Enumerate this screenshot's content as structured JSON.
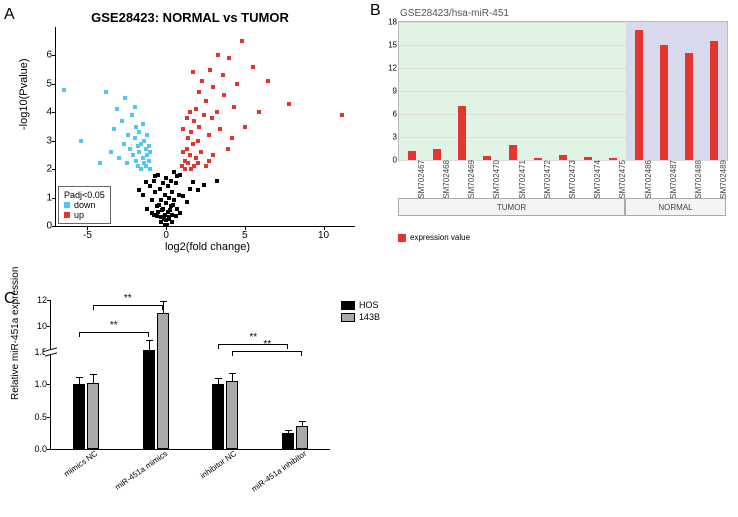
{
  "panelLabels": {
    "A": "A",
    "B": "B",
    "C": "C"
  },
  "volcano": {
    "title": "GSE28423: NORMAL vs TUMOR",
    "xlabel": "log2(fold change)",
    "ylabel": "-log10(Pvalue)",
    "xlim": [
      -7,
      12
    ],
    "ylim": [
      0,
      7
    ],
    "xticks": [
      -5,
      0,
      5,
      10
    ],
    "yticks": [
      0,
      1,
      2,
      3,
      4,
      5,
      6
    ],
    "colors": {
      "down": "#54c7f0",
      "up": "#e5352f",
      "ns": "#000000",
      "background": "#ffffff"
    },
    "pointSize": 4,
    "legend": {
      "title": "Padj<0.05",
      "items": [
        {
          "label": "down",
          "color": "#54c7f0"
        },
        {
          "label": "up",
          "color": "#e5352f"
        }
      ]
    },
    "points": [
      {
        "x": 11.2,
        "y": 3.9,
        "g": "up"
      },
      {
        "x": 7.8,
        "y": 4.3,
        "g": "up"
      },
      {
        "x": 6.5,
        "y": 5.1,
        "g": "up"
      },
      {
        "x": 5.9,
        "y": 4.0,
        "g": "up"
      },
      {
        "x": 5.5,
        "y": 5.6,
        "g": "up"
      },
      {
        "x": 5.0,
        "y": 3.5,
        "g": "up"
      },
      {
        "x": 4.8,
        "y": 6.5,
        "g": "up"
      },
      {
        "x": 4.5,
        "y": 5.0,
        "g": "up"
      },
      {
        "x": 4.3,
        "y": 4.2,
        "g": "up"
      },
      {
        "x": 4.2,
        "y": 3.1,
        "g": "up"
      },
      {
        "x": 4.0,
        "y": 5.9,
        "g": "up"
      },
      {
        "x": 3.9,
        "y": 2.7,
        "g": "up"
      },
      {
        "x": 3.7,
        "y": 4.6,
        "g": "up"
      },
      {
        "x": 3.6,
        "y": 5.3,
        "g": "up"
      },
      {
        "x": 3.4,
        "y": 3.4,
        "g": "up"
      },
      {
        "x": 3.3,
        "y": 6.0,
        "g": "up"
      },
      {
        "x": 3.2,
        "y": 4.0,
        "g": "up"
      },
      {
        "x": 3.0,
        "y": 2.5,
        "g": "up"
      },
      {
        "x": 3.0,
        "y": 4.9,
        "g": "up"
      },
      {
        "x": 2.9,
        "y": 3.8,
        "g": "up"
      },
      {
        "x": 2.8,
        "y": 5.5,
        "g": "up"
      },
      {
        "x": 2.7,
        "y": 2.3,
        "g": "up"
      },
      {
        "x": 2.7,
        "y": 3.2,
        "g": "up"
      },
      {
        "x": 2.5,
        "y": 4.4,
        "g": "up"
      },
      {
        "x": 2.5,
        "y": 2.1,
        "g": "up"
      },
      {
        "x": 2.4,
        "y": 3.9,
        "g": "up"
      },
      {
        "x": 2.3,
        "y": 5.1,
        "g": "up"
      },
      {
        "x": 2.2,
        "y": 2.6,
        "g": "up"
      },
      {
        "x": 2.1,
        "y": 3.5,
        "g": "up"
      },
      {
        "x": 2.1,
        "y": 4.7,
        "g": "up"
      },
      {
        "x": 2.0,
        "y": 2.2,
        "g": "up"
      },
      {
        "x": 2.0,
        "y": 3.0,
        "g": "up"
      },
      {
        "x": 1.9,
        "y": 4.1,
        "g": "up"
      },
      {
        "x": 1.9,
        "y": 2.4,
        "g": "up"
      },
      {
        "x": 1.8,
        "y": 3.7,
        "g": "up"
      },
      {
        "x": 1.8,
        "y": 2.1,
        "g": "up"
      },
      {
        "x": 1.7,
        "y": 2.9,
        "g": "up"
      },
      {
        "x": 1.7,
        "y": 5.4,
        "g": "up"
      },
      {
        "x": 1.6,
        "y": 2.0,
        "g": "up"
      },
      {
        "x": 1.6,
        "y": 3.3,
        "g": "up"
      },
      {
        "x": 1.5,
        "y": 2.5,
        "g": "up"
      },
      {
        "x": 1.5,
        "y": 4.0,
        "g": "up"
      },
      {
        "x": 1.4,
        "y": 2.2,
        "g": "up"
      },
      {
        "x": 1.4,
        "y": 3.1,
        "g": "up"
      },
      {
        "x": 1.3,
        "y": 2.7,
        "g": "up"
      },
      {
        "x": 1.3,
        "y": 3.8,
        "g": "up"
      },
      {
        "x": 1.2,
        "y": 2.3,
        "g": "up"
      },
      {
        "x": 1.2,
        "y": 2.0,
        "g": "up"
      },
      {
        "x": 1.1,
        "y": 2.6,
        "g": "up"
      },
      {
        "x": 1.1,
        "y": 3.4,
        "g": "up"
      },
      {
        "x": 1.0,
        "y": 2.1,
        "g": "up"
      },
      {
        "x": -6.5,
        "y": 4.8,
        "g": "down"
      },
      {
        "x": -5.4,
        "y": 3.0,
        "g": "down"
      },
      {
        "x": -4.2,
        "y": 2.2,
        "g": "down"
      },
      {
        "x": -3.8,
        "y": 4.7,
        "g": "down"
      },
      {
        "x": -3.5,
        "y": 2.6,
        "g": "down"
      },
      {
        "x": -3.3,
        "y": 3.4,
        "g": "down"
      },
      {
        "x": -3.1,
        "y": 4.1,
        "g": "down"
      },
      {
        "x": -3.0,
        "y": 2.4,
        "g": "down"
      },
      {
        "x": -2.8,
        "y": 3.7,
        "g": "down"
      },
      {
        "x": -2.7,
        "y": 2.9,
        "g": "down"
      },
      {
        "x": -2.6,
        "y": 4.5,
        "g": "down"
      },
      {
        "x": -2.5,
        "y": 2.2,
        "g": "down"
      },
      {
        "x": -2.4,
        "y": 3.2,
        "g": "down"
      },
      {
        "x": -2.3,
        "y": 2.7,
        "g": "down"
      },
      {
        "x": -2.2,
        "y": 3.9,
        "g": "down"
      },
      {
        "x": -2.1,
        "y": 2.5,
        "g": "down"
      },
      {
        "x": -2.0,
        "y": 3.1,
        "g": "down"
      },
      {
        "x": -2.0,
        "y": 4.2,
        "g": "down"
      },
      {
        "x": -1.9,
        "y": 2.3,
        "g": "down"
      },
      {
        "x": -1.9,
        "y": 3.5,
        "g": "down"
      },
      {
        "x": -1.8,
        "y": 2.8,
        "g": "down"
      },
      {
        "x": -1.8,
        "y": 2.1,
        "g": "down"
      },
      {
        "x": -1.7,
        "y": 3.3,
        "g": "down"
      },
      {
        "x": -1.7,
        "y": 2.6,
        "g": "down"
      },
      {
        "x": -1.6,
        "y": 2.0,
        "g": "down"
      },
      {
        "x": -1.6,
        "y": 2.9,
        "g": "down"
      },
      {
        "x": -1.5,
        "y": 2.4,
        "g": "down"
      },
      {
        "x": -1.5,
        "y": 3.6,
        "g": "down"
      },
      {
        "x": -1.4,
        "y": 2.2,
        "g": "down"
      },
      {
        "x": -1.4,
        "y": 3.0,
        "g": "down"
      },
      {
        "x": -1.3,
        "y": 2.7,
        "g": "down"
      },
      {
        "x": -1.3,
        "y": 2.1,
        "g": "down"
      },
      {
        "x": -1.2,
        "y": 2.5,
        "g": "down"
      },
      {
        "x": -1.2,
        "y": 3.2,
        "g": "down"
      },
      {
        "x": -1.1,
        "y": 2.3,
        "g": "down"
      },
      {
        "x": -1.1,
        "y": 2.8,
        "g": "down"
      },
      {
        "x": -1.0,
        "y": 2.0,
        "g": "down"
      },
      {
        "x": -1.0,
        "y": 2.6,
        "g": "down"
      },
      {
        "x": 3.2,
        "y": 1.6,
        "g": "ns"
      },
      {
        "x": 1.5,
        "y": 1.3,
        "g": "ns"
      },
      {
        "x": 0.9,
        "y": 1.8,
        "g": "ns"
      },
      {
        "x": 0.8,
        "y": 1.1,
        "g": "ns"
      },
      {
        "x": 0.7,
        "y": 0.6,
        "g": "ns"
      },
      {
        "x": 0.6,
        "y": 1.5,
        "g": "ns"
      },
      {
        "x": 0.5,
        "y": 0.9,
        "g": "ns"
      },
      {
        "x": 0.5,
        "y": 1.9,
        "g": "ns"
      },
      {
        "x": 0.4,
        "y": 0.4,
        "g": "ns"
      },
      {
        "x": 0.4,
        "y": 1.2,
        "g": "ns"
      },
      {
        "x": 0.3,
        "y": 0.7,
        "g": "ns"
      },
      {
        "x": 0.3,
        "y": 1.6,
        "g": "ns"
      },
      {
        "x": 0.2,
        "y": 0.3,
        "g": "ns"
      },
      {
        "x": 0.2,
        "y": 1.0,
        "g": "ns"
      },
      {
        "x": 0.1,
        "y": 0.5,
        "g": "ns"
      },
      {
        "x": 0.1,
        "y": 1.4,
        "g": "ns"
      },
      {
        "x": 0.0,
        "y": 0.2,
        "g": "ns"
      },
      {
        "x": 0.0,
        "y": 0.8,
        "g": "ns"
      },
      {
        "x": 0.0,
        "y": 1.7,
        "g": "ns"
      },
      {
        "x": -0.1,
        "y": 0.4,
        "g": "ns"
      },
      {
        "x": -0.1,
        "y": 1.1,
        "g": "ns"
      },
      {
        "x": -0.2,
        "y": 0.6,
        "g": "ns"
      },
      {
        "x": -0.2,
        "y": 1.5,
        "g": "ns"
      },
      {
        "x": -0.3,
        "y": 0.3,
        "g": "ns"
      },
      {
        "x": -0.3,
        "y": 0.9,
        "g": "ns"
      },
      {
        "x": -0.4,
        "y": 1.3,
        "g": "ns"
      },
      {
        "x": -0.5,
        "y": 0.5,
        "g": "ns"
      },
      {
        "x": -0.5,
        "y": 1.8,
        "g": "ns"
      },
      {
        "x": -0.6,
        "y": 0.7,
        "g": "ns"
      },
      {
        "x": -0.7,
        "y": 1.2,
        "g": "ns"
      },
      {
        "x": -0.8,
        "y": 0.4,
        "g": "ns"
      },
      {
        "x": -0.8,
        "y": 1.6,
        "g": "ns"
      },
      {
        "x": -0.9,
        "y": 0.9,
        "g": "ns"
      },
      {
        "x": -1.0,
        "y": 1.4,
        "g": "ns"
      },
      {
        "x": -1.2,
        "y": 0.6,
        "g": "ns"
      },
      {
        "x": -1.5,
        "y": 1.1,
        "g": "ns"
      },
      {
        "x": 0.35,
        "y": 0.15,
        "g": "ns"
      },
      {
        "x": -0.35,
        "y": 0.15,
        "g": "ns"
      },
      {
        "x": 0.15,
        "y": 0.25,
        "g": "ns"
      },
      {
        "x": -0.15,
        "y": 0.25,
        "g": "ns"
      },
      {
        "x": 0.25,
        "y": 0.55,
        "g": "ns"
      },
      {
        "x": -0.25,
        "y": 0.55,
        "g": "ns"
      },
      {
        "x": 0.6,
        "y": 0.35,
        "g": "ns"
      },
      {
        "x": -0.6,
        "y": 0.35,
        "g": "ns"
      },
      {
        "x": 0.45,
        "y": 0.75,
        "g": "ns"
      },
      {
        "x": -0.45,
        "y": 0.75,
        "g": "ns"
      },
      {
        "x": 0.05,
        "y": 0.05,
        "g": "ns"
      },
      {
        "x": -0.05,
        "y": 0.05,
        "g": "ns"
      },
      {
        "x": 0.7,
        "y": 1.75,
        "g": "ns"
      },
      {
        "x": -0.7,
        "y": 1.75,
        "g": "ns"
      },
      {
        "x": 0.9,
        "y": 0.45,
        "g": "ns"
      },
      {
        "x": -0.9,
        "y": 0.45,
        "g": "ns"
      },
      {
        "x": 1.1,
        "y": 1.05,
        "g": "ns"
      },
      {
        "x": 1.3,
        "y": 0.85,
        "g": "ns"
      },
      {
        "x": 1.7,
        "y": 1.55,
        "g": "ns"
      },
      {
        "x": 2.0,
        "y": 1.25,
        "g": "ns"
      },
      {
        "x": 2.4,
        "y": 1.45,
        "g": "ns"
      },
      {
        "x": -1.3,
        "y": 1.55,
        "g": "ns"
      },
      {
        "x": -1.7,
        "y": 1.25,
        "g": "ns"
      }
    ]
  },
  "expression": {
    "title": "GSE28423/hsa-miR-451",
    "ylim": [
      0,
      18
    ],
    "yticks": [
      0,
      3,
      6,
      9,
      12,
      15,
      18
    ],
    "barColor": "#e5352f",
    "tumorBg": "#e1f3e5",
    "normalBg": "#d9d9ee",
    "gridColor": "#dddddd",
    "legendLabel": "expression value",
    "groups": {
      "tumor": {
        "label": "TUMOR",
        "count": 9
      },
      "normal": {
        "label": "NORMAL",
        "count": 4
      }
    },
    "samples": [
      {
        "id": "GSM702467",
        "value": 1.2,
        "group": "tumor"
      },
      {
        "id": "GSM702468",
        "value": 1.4,
        "group": "tumor"
      },
      {
        "id": "GSM702469",
        "value": 7.0,
        "group": "tumor"
      },
      {
        "id": "GSM702470",
        "value": 0.5,
        "group": "tumor"
      },
      {
        "id": "GSM702471",
        "value": 1.9,
        "group": "tumor"
      },
      {
        "id": "GSM702472",
        "value": 0.3,
        "group": "tumor"
      },
      {
        "id": "GSM702473",
        "value": 0.6,
        "group": "tumor"
      },
      {
        "id": "GSM702474",
        "value": 0.4,
        "group": "tumor"
      },
      {
        "id": "GSM702475",
        "value": 0.3,
        "group": "tumor"
      },
      {
        "id": "GSM702486",
        "value": 17.0,
        "group": "normal"
      },
      {
        "id": "GSM702487",
        "value": 15.0,
        "group": "normal"
      },
      {
        "id": "GSM702488",
        "value": 14.0,
        "group": "normal"
      },
      {
        "id": "GSM702489",
        "value": 15.5,
        "group": "normal"
      }
    ]
  },
  "relExpression": {
    "ylabel": "Relative miR-451a expression",
    "yticks_lower": [
      0.0,
      0.5,
      1.0,
      1.5
    ],
    "yticks_upper": [
      8,
      10,
      12
    ],
    "breakAt": 1.5,
    "upperMin": 8,
    "upperMax": 12,
    "lowerFraction": 0.65,
    "colors": {
      "HOS": "#000000",
      "143B": "#a9a9a9"
    },
    "legend": [
      "HOS",
      "143B"
    ],
    "groups": [
      "mimics NC",
      "miR-451a mimics",
      "inhibitor NC",
      "miR-451a inhibitor"
    ],
    "data": {
      "HOS": {
        "values": [
          1.0,
          8.2,
          1.0,
          0.25
        ],
        "err": [
          0.12,
          0.7,
          0.1,
          0.05
        ]
      },
      "143B": {
        "values": [
          1.02,
          11.0,
          1.05,
          0.35
        ],
        "err": [
          0.14,
          0.9,
          0.12,
          0.08
        ]
      }
    },
    "significance": [
      {
        "g1": 0,
        "g2": 1,
        "series": "HOS",
        "label": "**",
        "yOffset": 18
      },
      {
        "g1": 0,
        "g2": 1,
        "series": "143B",
        "label": "**",
        "yOffset": 8
      },
      {
        "g1": 2,
        "g2": 3,
        "series": "HOS",
        "label": "**",
        "yOffset": 40
      },
      {
        "g1": 2,
        "g2": 3,
        "series": "143B",
        "label": "**",
        "yOffset": 30
      }
    ]
  }
}
